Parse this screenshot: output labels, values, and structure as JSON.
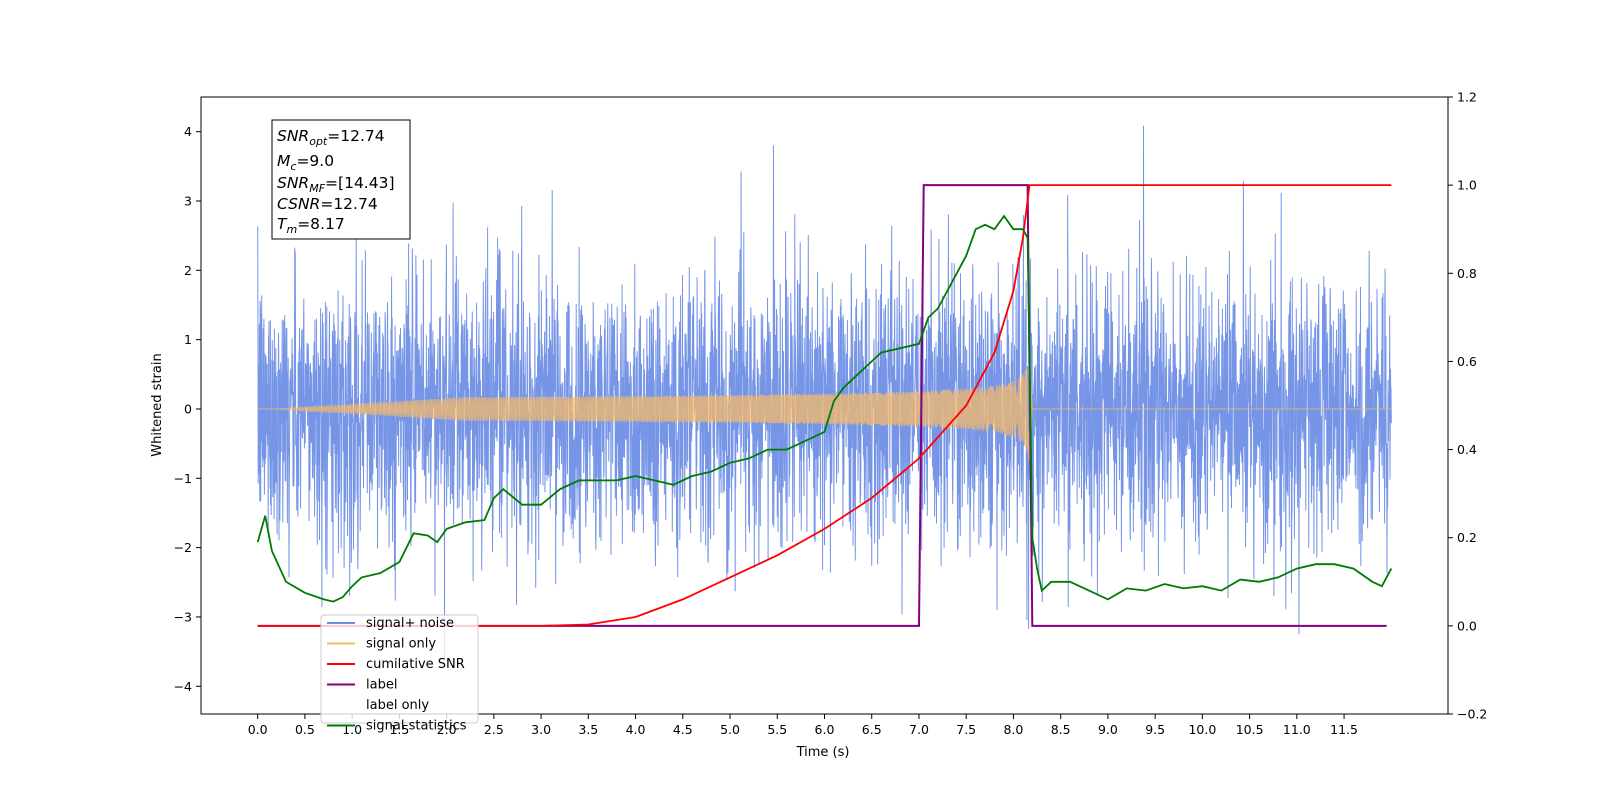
{
  "chart_data": {
    "type": "line",
    "xlabel": "Time (s)",
    "ylabel": "Whitened strain",
    "xlim": [
      -0.6,
      12.6
    ],
    "ylim": [
      -4.4,
      4.5
    ],
    "ylim_right": [
      -0.2,
      1.2
    ],
    "x_ticks": [
      "0.0",
      "0.5",
      "1.0",
      "1.5",
      "2.0",
      "2.5",
      "3.0",
      "3.5",
      "4.0",
      "4.5",
      "5.0",
      "5.5",
      "6.0",
      "6.5",
      "7.0",
      "7.5",
      "8.0",
      "8.5",
      "9.0",
      "9.5",
      "10.0",
      "10.5",
      "11.0",
      "11.5"
    ],
    "y_ticks_left": [
      "4",
      "3",
      "2",
      "1",
      "0",
      "−1",
      "−2",
      "−3",
      "−4"
    ],
    "y_ticks_right": [
      "1.2",
      "1.0",
      "0.8",
      "0.6",
      "0.4",
      "0.2",
      "0.0",
      "−0.2"
    ],
    "legend_placement": "lower-left",
    "colors": {
      "signal_noise": "#6f8fe6",
      "signal_only": "#f5b96a",
      "cumulative_snr": "#ff0000",
      "label": "#800080",
      "signal_statistics": "#007a00"
    },
    "annotation": {
      "snr_opt": {
        "main": "SNR",
        "sub": "opt",
        "value": "=12.74"
      },
      "mc": {
        "main": "M",
        "sub": "c",
        "value": "=9.0"
      },
      "snr_mf": {
        "main": "SNR",
        "sub": "MF",
        "value": "=[14.43]"
      },
      "csnr": {
        "main": "CSNR",
        "value": "=12.74"
      },
      "tm": {
        "main": "T",
        "sub": "m",
        "value": "=8.17"
      }
    },
    "series": [
      {
        "name": "signal+ noise",
        "axis": "left",
        "x_range": [
          0.0,
          12.0
        ],
        "amplitude_std": 0.95
      },
      {
        "name": "signal only",
        "axis": "left",
        "x_range": [
          0.0,
          8.17
        ],
        "peak_amplitude": 0.85,
        "merger_time": 8.17
      },
      {
        "name": "cumilative SNR",
        "axis": "right",
        "x": [
          0.0,
          3.0,
          3.5,
          4.0,
          4.5,
          5.0,
          5.5,
          6.0,
          6.5,
          7.0,
          7.5,
          7.8,
          8.0,
          8.1,
          8.17,
          12.0
        ],
        "y": [
          0.0,
          0.0,
          0.003,
          0.02,
          0.06,
          0.11,
          0.16,
          0.22,
          0.29,
          0.38,
          0.5,
          0.62,
          0.76,
          0.88,
          1.0,
          1.0
        ]
      },
      {
        "name": "label",
        "axis": "right",
        "x": [
          0.0,
          7.0,
          7.05,
          8.15,
          8.2,
          11.95
        ],
        "y": [
          0.0,
          0.0,
          1.0,
          1.0,
          0.0,
          0.0
        ]
      },
      {
        "name": "label only",
        "axis": "right",
        "x": [],
        "y": []
      },
      {
        "name": "signal statistics",
        "axis": "right",
        "x": [
          0.0,
          0.08,
          0.15,
          0.3,
          0.5,
          0.7,
          0.8,
          0.9,
          1.0,
          1.1,
          1.3,
          1.5,
          1.65,
          1.8,
          1.9,
          2.0,
          2.2,
          2.4,
          2.5,
          2.6,
          2.8,
          3.0,
          3.2,
          3.4,
          3.5,
          3.8,
          4.0,
          4.2,
          4.4,
          4.6,
          4.8,
          5.0,
          5.2,
          5.4,
          5.6,
          5.8,
          6.0,
          6.1,
          6.2,
          6.4,
          6.5,
          6.6,
          6.8,
          7.0,
          7.1,
          7.2,
          7.3,
          7.5,
          7.6,
          7.7,
          7.8,
          7.9,
          8.0,
          8.1,
          8.15,
          8.2,
          8.25,
          8.3,
          8.4,
          8.6,
          8.8,
          9.0,
          9.2,
          9.4,
          9.6,
          9.8,
          10.0,
          10.2,
          10.4,
          10.6,
          10.8,
          11.0,
          11.2,
          11.4,
          11.6,
          11.8,
          11.9,
          12.0
        ],
        "y": [
          0.19,
          0.25,
          0.17,
          0.1,
          0.075,
          0.06,
          0.055,
          0.065,
          0.09,
          0.11,
          0.12,
          0.145,
          0.21,
          0.205,
          0.19,
          0.22,
          0.235,
          0.24,
          0.29,
          0.31,
          0.275,
          0.275,
          0.31,
          0.33,
          0.33,
          0.33,
          0.34,
          0.33,
          0.32,
          0.34,
          0.35,
          0.37,
          0.38,
          0.4,
          0.4,
          0.42,
          0.44,
          0.51,
          0.54,
          0.58,
          0.6,
          0.62,
          0.63,
          0.64,
          0.7,
          0.72,
          0.76,
          0.84,
          0.9,
          0.91,
          0.9,
          0.93,
          0.9,
          0.9,
          0.88,
          0.2,
          0.13,
          0.08,
          0.1,
          0.1,
          0.08,
          0.06,
          0.085,
          0.08,
          0.095,
          0.085,
          0.09,
          0.08,
          0.105,
          0.1,
          0.11,
          0.13,
          0.14,
          0.14,
          0.13,
          0.1,
          0.09,
          0.13
        ]
      }
    ]
  }
}
